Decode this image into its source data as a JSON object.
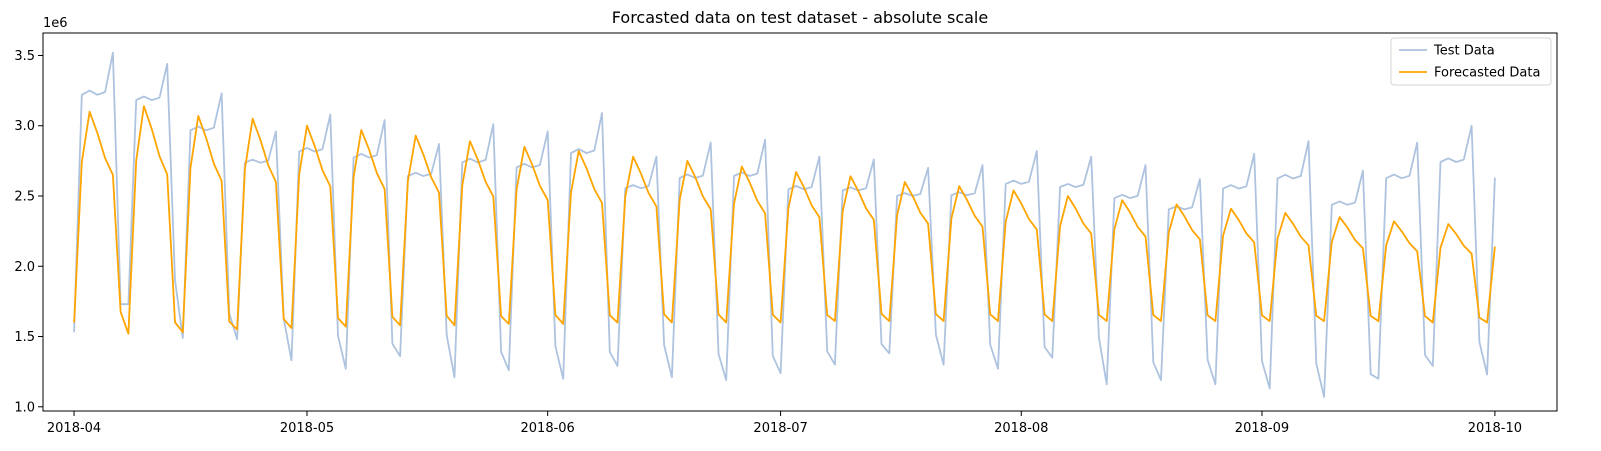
{
  "chart_data": {
    "type": "line",
    "title": "Forcasted data on test dataset - absolute scale",
    "xlabel": "",
    "ylabel": "",
    "y_multiplier_label": "1e6",
    "ylim": [
      0.97,
      3.66
    ],
    "y_ticks": [
      1.0,
      1.5,
      2.0,
      2.5,
      3.0,
      3.5
    ],
    "y_tick_labels": [
      "1.0",
      "1.5",
      "2.0",
      "2.5",
      "3.0",
      "3.5"
    ],
    "x_range": [
      "2018-03-28",
      "2018-10-09"
    ],
    "x_ticks": [
      "2018-04-01",
      "2018-05-01",
      "2018-06-01",
      "2018-07-01",
      "2018-08-01",
      "2018-09-01",
      "2018-10-01"
    ],
    "x_tick_labels": [
      "2018-04",
      "2018-05",
      "2018-06",
      "2018-07",
      "2018-08",
      "2018-09",
      "2018-10"
    ],
    "grid": false,
    "legend_position": "top-right",
    "start_date": "2018-04-01",
    "series": [
      {
        "name": "Test Data",
        "color": "#aec3df",
        "weekly_pattern": [
          1.53,
          3.22,
          3.25,
          3.22,
          3.24,
          3.52,
          1.73
        ],
        "week_peaks": [
          3.52,
          3.44,
          3.23,
          2.96,
          3.08,
          3.04,
          2.87,
          3.01,
          2.96,
          3.09,
          2.78,
          2.88,
          2.9,
          2.78,
          2.76,
          2.7,
          2.72,
          2.82,
          2.78,
          2.72,
          2.62,
          2.8,
          2.89,
          2.68,
          2.88,
          3.0,
          2.63
        ],
        "week_troughs": [
          1.53,
          1.73,
          1.49,
          1.48,
          1.33,
          1.27,
          1.36,
          1.21,
          1.26,
          1.2,
          1.29,
          1.21,
          1.19,
          1.24,
          1.3,
          1.38,
          1.3,
          1.27,
          1.35,
          1.16,
          1.19,
          1.16,
          1.13,
          1.07,
          1.2,
          1.29,
          1.23,
          1.2
        ]
      },
      {
        "name": "Forecasted Data",
        "color": "#ffa500",
        "week_peaks": [
          3.1,
          3.14,
          3.07,
          3.05,
          3.0,
          2.97,
          2.93,
          2.89,
          2.85,
          2.82,
          2.78,
          2.75,
          2.71,
          2.67,
          2.64,
          2.6,
          2.57,
          2.54,
          2.5,
          2.47,
          2.44,
          2.41,
          2.38,
          2.35,
          2.32,
          2.3,
          2.14
        ],
        "week_troughs": [
          1.6,
          1.52,
          1.53,
          1.55,
          1.56,
          1.57,
          1.58,
          1.58,
          1.59,
          1.59,
          1.6,
          1.6,
          1.6,
          1.6,
          1.61,
          1.61,
          1.61,
          1.61,
          1.61,
          1.61,
          1.61,
          1.61,
          1.61,
          1.61,
          1.61,
          1.6,
          1.6
        ]
      }
    ]
  }
}
